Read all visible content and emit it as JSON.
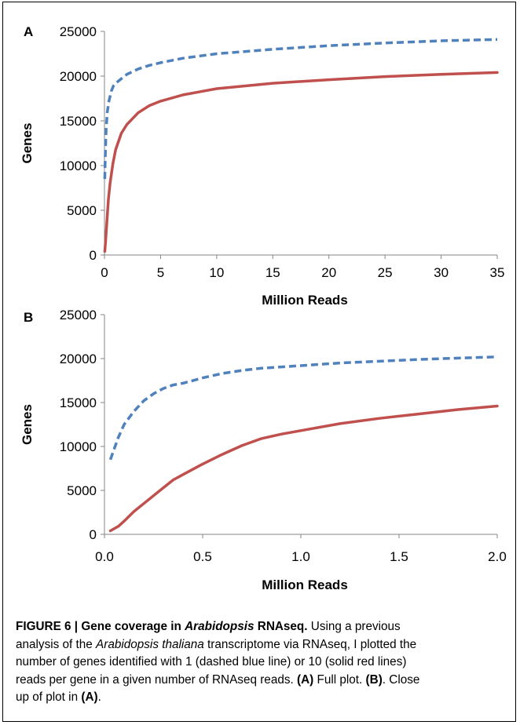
{
  "chart_data": [
    {
      "panel": "A",
      "type": "line",
      "xlabel": "Million Reads",
      "ylabel": "Genes",
      "xlim": [
        0,
        35
      ],
      "ylim": [
        0,
        25000
      ],
      "xticks": [
        "0",
        "5",
        "10",
        "15",
        "20",
        "25",
        "30",
        "35"
      ],
      "yticks": [
        "0",
        "5000",
        "10000",
        "15000",
        "20000",
        "25000"
      ],
      "grid": false,
      "series": [
        {
          "style": "dashed",
          "color": "#4f81bd",
          "x": [
            0.03,
            0.07,
            0.15,
            0.25,
            0.4,
            0.6,
            0.8,
            1.0,
            1.5,
            2,
            3,
            4,
            5,
            7,
            10,
            15,
            20,
            25,
            30,
            35
          ],
          "y": [
            8500,
            11000,
            14000,
            16000,
            17200,
            18300,
            18900,
            19200,
            19700,
            20200,
            20800,
            21200,
            21500,
            22000,
            22500,
            23000,
            23400,
            23700,
            23950,
            24100
          ]
        },
        {
          "style": "solid",
          "color": "#c0504d",
          "x": [
            0.03,
            0.1,
            0.2,
            0.35,
            0.5,
            0.75,
            1.0,
            1.5,
            2,
            3,
            4,
            5,
            7,
            10,
            15,
            20,
            25,
            30,
            35
          ],
          "y": [
            400,
            1500,
            3500,
            6200,
            8000,
            10200,
            11800,
            13600,
            14600,
            15900,
            16700,
            17200,
            17900,
            18600,
            19200,
            19600,
            19950,
            20200,
            20400
          ]
        }
      ]
    },
    {
      "panel": "B",
      "type": "line",
      "xlabel": "Million Reads",
      "ylabel": "Genes",
      "xlim": [
        0,
        2
      ],
      "ylim": [
        0,
        25000
      ],
      "xticks": [
        "0.0",
        "0.5",
        "1.0",
        "1.5",
        "2.0"
      ],
      "yticks": [
        "0",
        "5000",
        "10000",
        "15000",
        "20000",
        "25000"
      ],
      "grid": false,
      "series": [
        {
          "style": "dashed",
          "color": "#4f81bd",
          "x": [
            0.03,
            0.07,
            0.1,
            0.15,
            0.2,
            0.25,
            0.3,
            0.35,
            0.4,
            0.5,
            0.6,
            0.7,
            0.8,
            1.0,
            1.2,
            1.4,
            1.6,
            1.8,
            2.0
          ],
          "y": [
            8500,
            11000,
            12500,
            14000,
            15200,
            16000,
            16600,
            17000,
            17200,
            17800,
            18300,
            18650,
            18900,
            19200,
            19500,
            19700,
            19900,
            20050,
            20200
          ]
        },
        {
          "style": "solid",
          "color": "#c0504d",
          "x": [
            0.03,
            0.07,
            0.1,
            0.15,
            0.2,
            0.25,
            0.3,
            0.35,
            0.4,
            0.5,
            0.6,
            0.7,
            0.8,
            0.9,
            1.0,
            1.2,
            1.4,
            1.6,
            1.8,
            2.0
          ],
          "y": [
            400,
            900,
            1500,
            2600,
            3500,
            4400,
            5300,
            6200,
            6800,
            8000,
            9100,
            10100,
            10900,
            11400,
            11800,
            12600,
            13200,
            13700,
            14200,
            14600
          ]
        }
      ]
    }
  ],
  "caption": {
    "title": "FIGURE 6 | Gene coverage in Arabidopsis RNAseq.",
    "line1_rest": " Using a previous",
    "line2": "analysis of the Arabidopsis thaliana transcriptome via RNAseq, I plotted the",
    "line3": "number of genes identified with 1 (dashed blue line) or 10 (solid red lines)",
    "line4_pre": "reads per gene in a given number of RNAseq reads. ",
    "line4_a": "(A)",
    "line4_mid": " Full plot. ",
    "line4_b": "(B)",
    "line4_post": ". Close",
    "line5_pre": "up of plot in ",
    "line5_a": "(A)",
    "line5_post": "."
  }
}
